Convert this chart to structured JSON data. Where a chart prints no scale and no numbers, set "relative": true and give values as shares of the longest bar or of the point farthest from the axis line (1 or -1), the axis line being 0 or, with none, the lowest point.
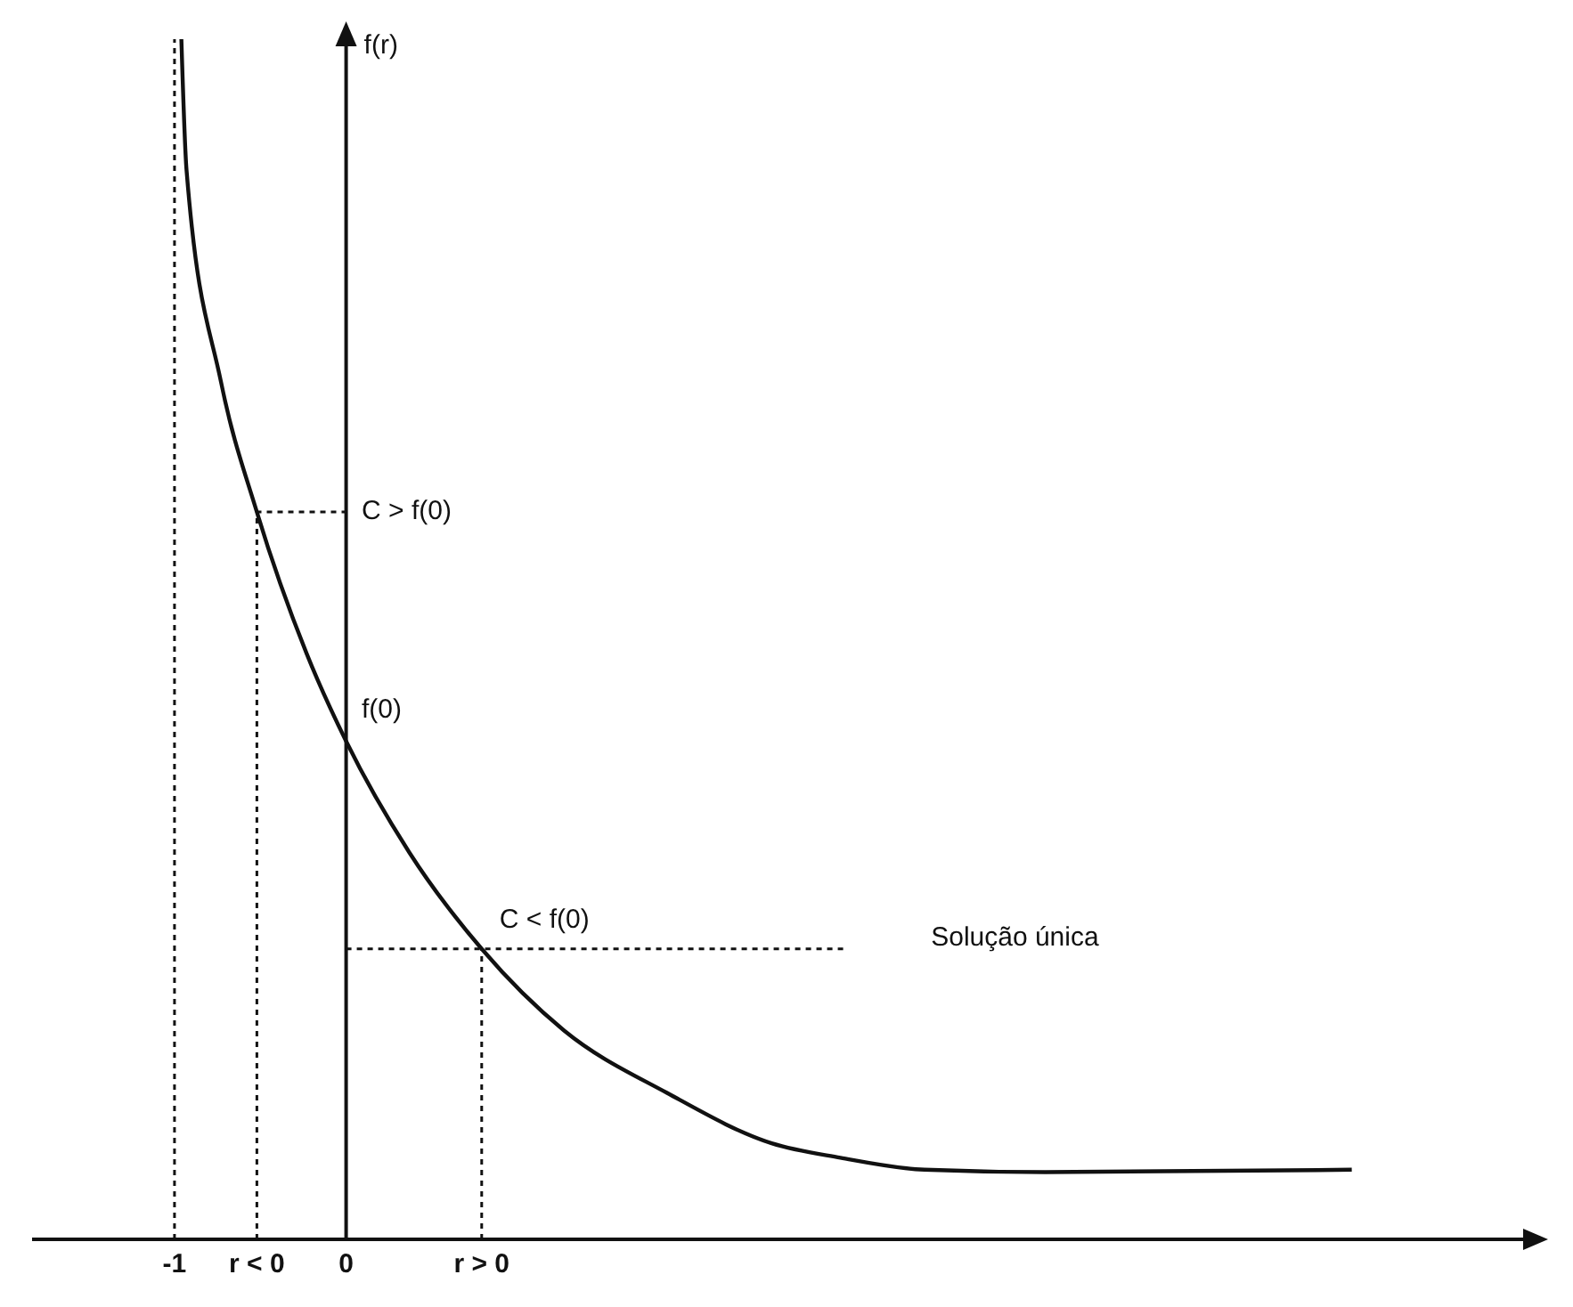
{
  "chart_data": {
    "type": "line",
    "relative": true,
    "ylabel": "f(r)",
    "xlim": [
      -1.83,
      6.9
    ],
    "xticks": [
      {
        "value": -1,
        "label": "-1"
      },
      {
        "value": -0.52,
        "label": "r < 0"
      },
      {
        "value": 0,
        "label": "0"
      },
      {
        "value": 0.79,
        "label": "r > 0"
      }
    ],
    "marker": "none",
    "series": [
      {
        "color": "#111111",
        "line_style": "solid",
        "x": [
          -0.96,
          -0.93,
          -0.73,
          -0.52,
          -0.23,
          0,
          0.37,
          0.79,
          1.27,
          1.87,
          2.48,
          2.88,
          3.37,
          4.07,
          5.86
        ],
        "values": [
          1.0,
          0.891,
          0.715,
          0.606,
          0.488,
          0.415,
          0.322,
          0.242,
          0.174,
          0.122,
          0.08,
          0.068,
          0.058,
          0.056,
          0.058
        ]
      },
      {
        "color": "#111111",
        "line_style": "dotted",
        "x": [
          -0.52,
          -0.52,
          0
        ],
        "values": [
          0,
          0.606,
          0.606
        ]
      },
      {
        "color": "#111111",
        "line_style": "dotted",
        "x": [
          0.79,
          0.79
        ],
        "values": [
          0,
          0.242
        ]
      },
      {
        "color": "#111111",
        "line_style": "dotted",
        "x": [
          0,
          2.92
        ],
        "values": [
          0.242,
          0.242
        ]
      }
    ],
    "ref_lines": [
      {
        "axis": "x",
        "value": -1,
        "label": null,
        "color": "#111111",
        "line_style": "dotted"
      }
    ],
    "annotations": [
      "C > f(0)",
      "f(0)",
      {
        "text": "C < f(0)",
        "x": 0.79,
        "y": 0.242
      },
      "Solução única"
    ]
  }
}
